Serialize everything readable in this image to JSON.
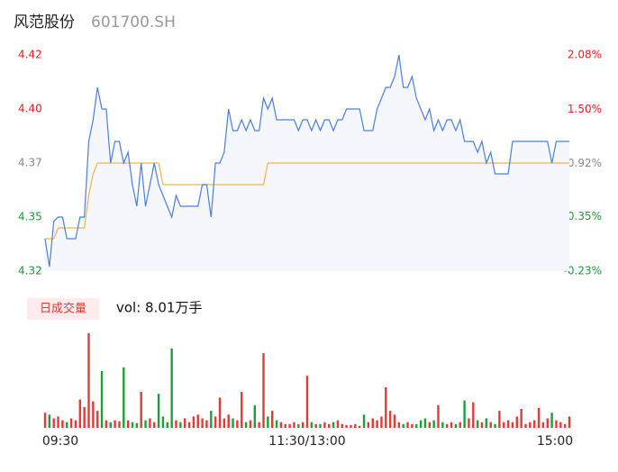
{
  "chart_data": [
    {
      "type": "line",
      "title": "风范股份",
      "subtitle": "601700.SH",
      "series": [
        {
          "color": "#4a7fe0",
          "values": [
            4.335,
            4.322,
            4.343,
            4.345,
            4.345,
            4.335,
            4.335,
            4.335,
            4.345,
            4.345,
            4.38,
            4.39,
            4.405,
            4.395,
            4.395,
            4.37,
            4.38,
            4.38,
            4.37,
            4.375,
            4.36,
            4.35,
            4.37,
            4.35,
            4.36,
            4.37,
            4.36,
            4.355,
            4.35,
            4.345,
            4.355,
            4.35,
            4.35,
            4.35,
            4.35,
            4.35,
            4.36,
            4.36,
            4.345,
            4.37,
            4.37,
            4.375,
            4.395,
            4.385,
            4.385,
            4.39,
            4.385,
            4.39,
            4.385,
            4.385,
            4.4,
            4.395,
            4.4,
            4.39,
            4.39,
            4.39,
            4.39,
            4.39,
            4.385,
            4.39,
            4.39,
            4.385,
            4.39,
            4.385,
            4.39,
            4.39,
            4.385,
            4.39,
            4.39,
            4.395,
            4.395,
            4.395,
            4.395,
            4.385,
            4.385,
            4.385,
            4.395,
            4.4,
            4.405,
            4.405,
            4.41,
            4.42,
            4.405,
            4.405,
            4.41,
            4.4,
            4.395,
            4.39,
            4.395,
            4.385,
            4.39,
            4.385,
            4.39,
            4.39,
            4.385,
            4.39,
            4.38,
            4.38,
            4.38,
            4.375,
            4.38,
            4.37,
            4.375,
            4.365,
            4.365,
            4.365,
            4.365,
            4.38,
            4.38,
            4.38,
            4.38,
            4.38,
            4.38,
            4.38,
            4.38,
            4.38,
            4.37,
            4.38,
            4.38,
            4.38,
            4.38
          ]
        },
        {
          "color": "#f0b44c",
          "values": [
            4.335,
            4.335,
            4.335,
            4.34,
            4.34,
            4.34,
            4.34,
            4.34,
            4.34,
            4.34,
            4.355,
            4.365,
            4.37,
            4.37,
            4.37,
            4.37,
            4.37,
            4.37,
            4.37,
            4.37,
            4.37,
            4.37,
            4.37,
            4.37,
            4.37,
            4.37,
            4.37,
            4.36,
            4.36,
            4.36,
            4.36,
            4.36,
            4.36,
            4.36,
            4.36,
            4.36,
            4.36,
            4.36,
            4.36,
            4.36,
            4.36,
            4.36,
            4.36,
            4.36,
            4.36,
            4.36,
            4.36,
            4.36,
            4.36,
            4.36,
            4.36,
            4.37,
            4.37,
            4.37,
            4.37,
            4.37,
            4.37,
            4.37,
            4.37,
            4.37,
            4.37,
            4.37,
            4.37,
            4.37,
            4.37,
            4.37,
            4.37,
            4.37,
            4.37,
            4.37,
            4.37,
            4.37,
            4.37,
            4.37,
            4.37,
            4.37,
            4.37,
            4.37,
            4.37,
            4.37,
            4.37,
            4.37,
            4.37,
            4.37,
            4.37,
            4.37,
            4.37,
            4.37,
            4.37,
            4.37,
            4.37,
            4.37,
            4.37,
            4.37,
            4.37,
            4.37,
            4.37,
            4.37,
            4.37,
            4.37,
            4.37,
            4.37,
            4.37,
            4.37,
            4.37,
            4.37,
            4.37,
            4.37,
            4.37,
            4.37,
            4.37,
            4.37,
            4.37,
            4.37,
            4.37,
            4.37,
            4.37,
            4.37,
            4.37,
            4.37,
            4.37
          ]
        }
      ],
      "area_color": "#f5f7fc",
      "ylim": [
        4.32,
        4.42
      ],
      "yticks": [
        4.42,
        {
          "value": 4.395,
          "label": "4.40"
        },
        4.37,
        {
          "value": 4.345,
          "label": "4.35"
        },
        4.32
      ],
      "y2lim": [
        -0.23,
        2.08
      ],
      "y2ticks": [
        {
          "value": 2.08,
          "label": "2.08%"
        },
        {
          "value": 1.5,
          "label": "1.50%"
        },
        {
          "value": 0.92,
          "label": "0.92%"
        },
        {
          "value": 0.35,
          "label": "0.35%"
        },
        {
          "value": -0.23,
          "label": "-0.23%"
        }
      ],
      "ytick_colors": [
        "#e02020",
        "#e02020",
        "#888888",
        "#1a9a3a",
        "#1a9a3a"
      ]
    },
    {
      "type": "bar",
      "label": "日成交量",
      "annotation": "vol: 8.01万手",
      "categories": [
        "09:30",
        null,
        null,
        null,
        null,
        null,
        null,
        null,
        null,
        null,
        null,
        null,
        null,
        null,
        null,
        null,
        null,
        null,
        null,
        null,
        null,
        null,
        null,
        null,
        null,
        null,
        null,
        null,
        null,
        null,
        null,
        null,
        null,
        null,
        null,
        null,
        null,
        null,
        null,
        null,
        null,
        null,
        null,
        null,
        null,
        null,
        null,
        null,
        null,
        null,
        null,
        null,
        null,
        null,
        null,
        null,
        null,
        null,
        null,
        null,
        "11:30/13:00",
        null,
        null,
        null,
        null,
        null,
        null,
        null,
        null,
        null,
        null,
        null,
        null,
        null,
        null,
        null,
        null,
        null,
        null,
        null,
        null,
        null,
        null,
        null,
        null,
        null,
        null,
        null,
        null,
        null,
        null,
        null,
        null,
        null,
        null,
        null,
        null,
        null,
        null,
        null,
        null,
        null,
        null,
        null,
        null,
        null,
        null,
        null,
        null,
        null,
        null,
        null,
        null,
        null,
        null,
        null,
        null,
        null,
        null,
        null,
        "15:00"
      ],
      "values": [
        800,
        700,
        500,
        600,
        400,
        300,
        500,
        400,
        1500,
        1100,
        5000,
        1400,
        900,
        3000,
        400,
        300,
        400,
        350,
        3200,
        400,
        300,
        250,
        1900,
        400,
        500,
        300,
        1800,
        600,
        300,
        4200,
        400,
        300,
        500,
        300,
        600,
        700,
        500,
        400,
        900,
        600,
        1600,
        500,
        700,
        500,
        400,
        1900,
        300,
        400,
        1200,
        300,
        3950,
        600,
        900,
        400,
        300,
        200,
        200,
        300,
        200,
        300,
        2750,
        300,
        200,
        200,
        300,
        200,
        300,
        400,
        200,
        150,
        150,
        200,
        100,
        700,
        300,
        500,
        400,
        600,
        2150,
        900,
        700,
        300,
        200,
        300,
        200,
        200,
        400,
        500,
        300,
        400,
        1200,
        300,
        200,
        300,
        200,
        300,
        1450,
        500,
        1350,
        400,
        300,
        500,
        300,
        200,
        900,
        300,
        400,
        300,
        600,
        1000,
        200,
        300,
        400,
        1050,
        300,
        500,
        800,
        400,
        300,
        200,
        600
      ],
      "ylim": [
        0,
        5000
      ],
      "up_color": "#e53935",
      "down_color": "#1e9e3a"
    }
  ]
}
